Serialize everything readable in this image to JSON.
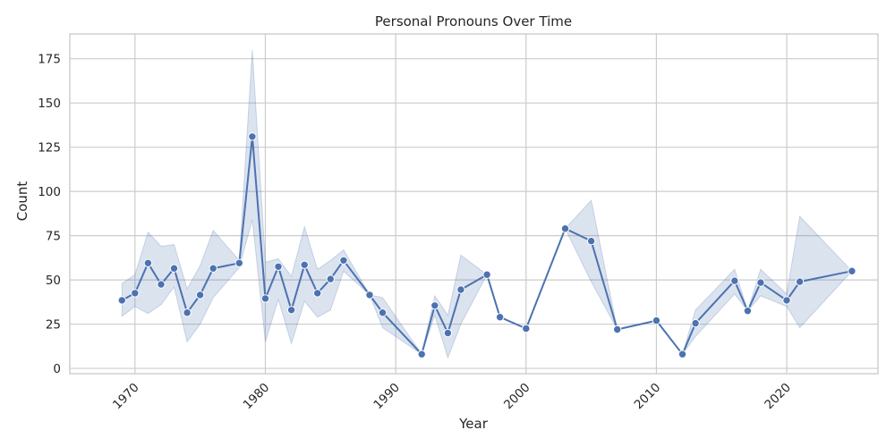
{
  "chart_data": {
    "type": "line",
    "title": "Personal Pronouns Over Time",
    "xlabel": "Year",
    "ylabel": "Count",
    "xlim": [
      1965,
      2027
    ],
    "ylim": [
      -3,
      189
    ],
    "grid": true,
    "x_ticks": [
      1970,
      1980,
      1990,
      2000,
      2010,
      2020
    ],
    "y_ticks": [
      0,
      25,
      50,
      75,
      100,
      125,
      150,
      175
    ],
    "colors": {
      "line": "#4c72b0",
      "band": "#4c72b0",
      "grid": "#cccccc",
      "axes": "#cccccc"
    },
    "series": [
      {
        "x": [
          1969,
          1970,
          1971,
          1972,
          1973,
          1974,
          1975,
          1976,
          1978,
          1979,
          1980,
          1981,
          1982,
          1983,
          1984,
          1985,
          1986,
          1988,
          1989,
          1992,
          1993,
          1994,
          1995,
          1997,
          1998,
          2000,
          2003,
          2005,
          2007,
          2010,
          2012,
          2013,
          2016,
          2017,
          2018,
          2020,
          2021,
          2025
        ],
        "y": [
          38.5,
          42.5,
          59.5,
          47.5,
          56.5,
          31.5,
          41.5,
          56.5,
          59.5,
          131,
          39.5,
          57.5,
          33,
          58.5,
          42.5,
          50.5,
          61,
          41.5,
          31.5,
          8,
          35.5,
          20,
          44.5,
          53,
          29,
          22.5,
          79,
          72,
          22,
          27,
          8,
          25.5,
          49.5,
          32.5,
          48.5,
          38.5,
          49,
          55
        ],
        "ci_lower": [
          29.5,
          35,
          31,
          36,
          46,
          15,
          25,
          40,
          57,
          84,
          15,
          39,
          14,
          38,
          29,
          33,
          55,
          41.5,
          23,
          8,
          30,
          6,
          25,
          53,
          29,
          22.5,
          79,
          49,
          22,
          27,
          8,
          18,
          42,
          32.5,
          41,
          35,
          23,
          55
        ],
        "ci_upper": [
          48,
          53,
          77,
          69,
          70,
          45,
          58,
          78,
          61,
          180,
          60,
          62,
          52,
          80,
          56,
          61,
          67,
          41.5,
          40,
          8,
          41,
          30,
          64,
          53,
          29,
          22.5,
          79,
          95,
          22,
          27,
          8,
          33,
          56,
          32.5,
          56,
          42,
          86,
          55
        ]
      }
    ]
  }
}
